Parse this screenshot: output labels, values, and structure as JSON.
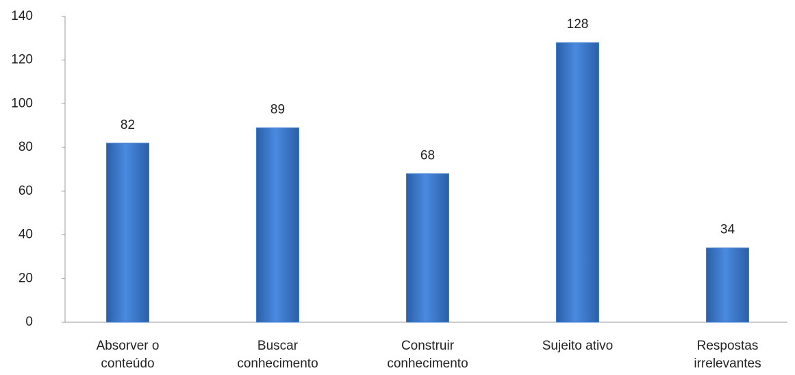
{
  "chart_data": {
    "type": "bar",
    "categories": [
      "Absorver o conteúdo",
      "Buscar conhecimento",
      "Construir conhecimento",
      "Sujeito ativo",
      "Respostas irrelevantes"
    ],
    "values": [
      82,
      89,
      68,
      128,
      34
    ],
    "color": "#3f7fd0",
    "ylim": [
      0,
      140
    ],
    "yticks": [
      0,
      20,
      40,
      60,
      80,
      100,
      120,
      140
    ],
    "grid": false
  }
}
